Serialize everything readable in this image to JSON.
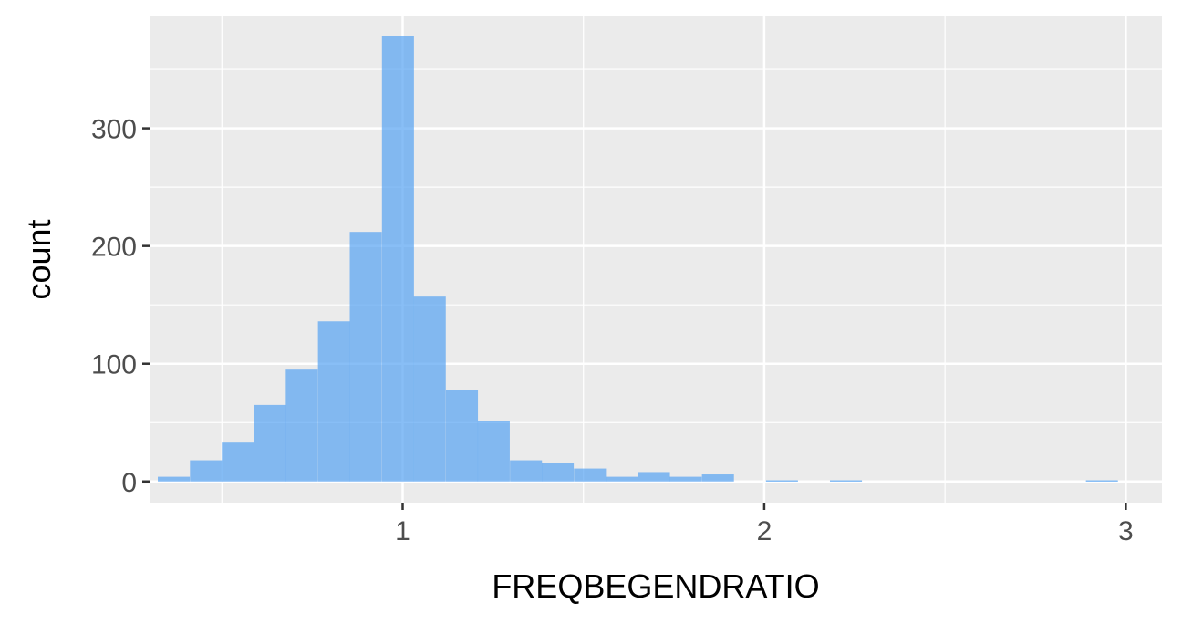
{
  "chart_data": {
    "type": "bar",
    "xlabel": "FREQBEGENDRATIO",
    "ylabel": "count",
    "xlim": [
      0.3,
      3.1
    ],
    "ylim": [
      -18,
      395
    ],
    "x_ticks": [
      1,
      2,
      3
    ],
    "y_ticks": [
      0,
      100,
      200,
      300
    ],
    "x_minor_ticks": [
      0.5,
      1.5,
      2.5
    ],
    "y_minor_ticks": [
      50,
      150,
      250,
      350
    ],
    "bin_width": 0.0885,
    "bins": [
      {
        "x": 0.367,
        "count": 4
      },
      {
        "x": 0.456,
        "count": 18
      },
      {
        "x": 0.544,
        "count": 33
      },
      {
        "x": 0.633,
        "count": 65
      },
      {
        "x": 0.721,
        "count": 95
      },
      {
        "x": 0.81,
        "count": 136
      },
      {
        "x": 0.898,
        "count": 212
      },
      {
        "x": 0.987,
        "count": 378
      },
      {
        "x": 1.075,
        "count": 157
      },
      {
        "x": 1.164,
        "count": 78
      },
      {
        "x": 1.252,
        "count": 51
      },
      {
        "x": 1.341,
        "count": 18
      },
      {
        "x": 1.429,
        "count": 16
      },
      {
        "x": 1.518,
        "count": 11
      },
      {
        "x": 1.606,
        "count": 4
      },
      {
        "x": 1.695,
        "count": 8
      },
      {
        "x": 1.783,
        "count": 4
      },
      {
        "x": 1.872,
        "count": 6
      },
      {
        "x": 2.049,
        "count": 1
      },
      {
        "x": 2.226,
        "count": 1
      },
      {
        "x": 2.934,
        "count": 1
      }
    ],
    "grid": true,
    "colors": {
      "panel": "#ebebeb",
      "grid": "#ffffff",
      "bar": "#56a3f2",
      "bar_alpha": 0.7,
      "tick_text": "#4d4d4d",
      "tick_mark": "#333333"
    }
  }
}
